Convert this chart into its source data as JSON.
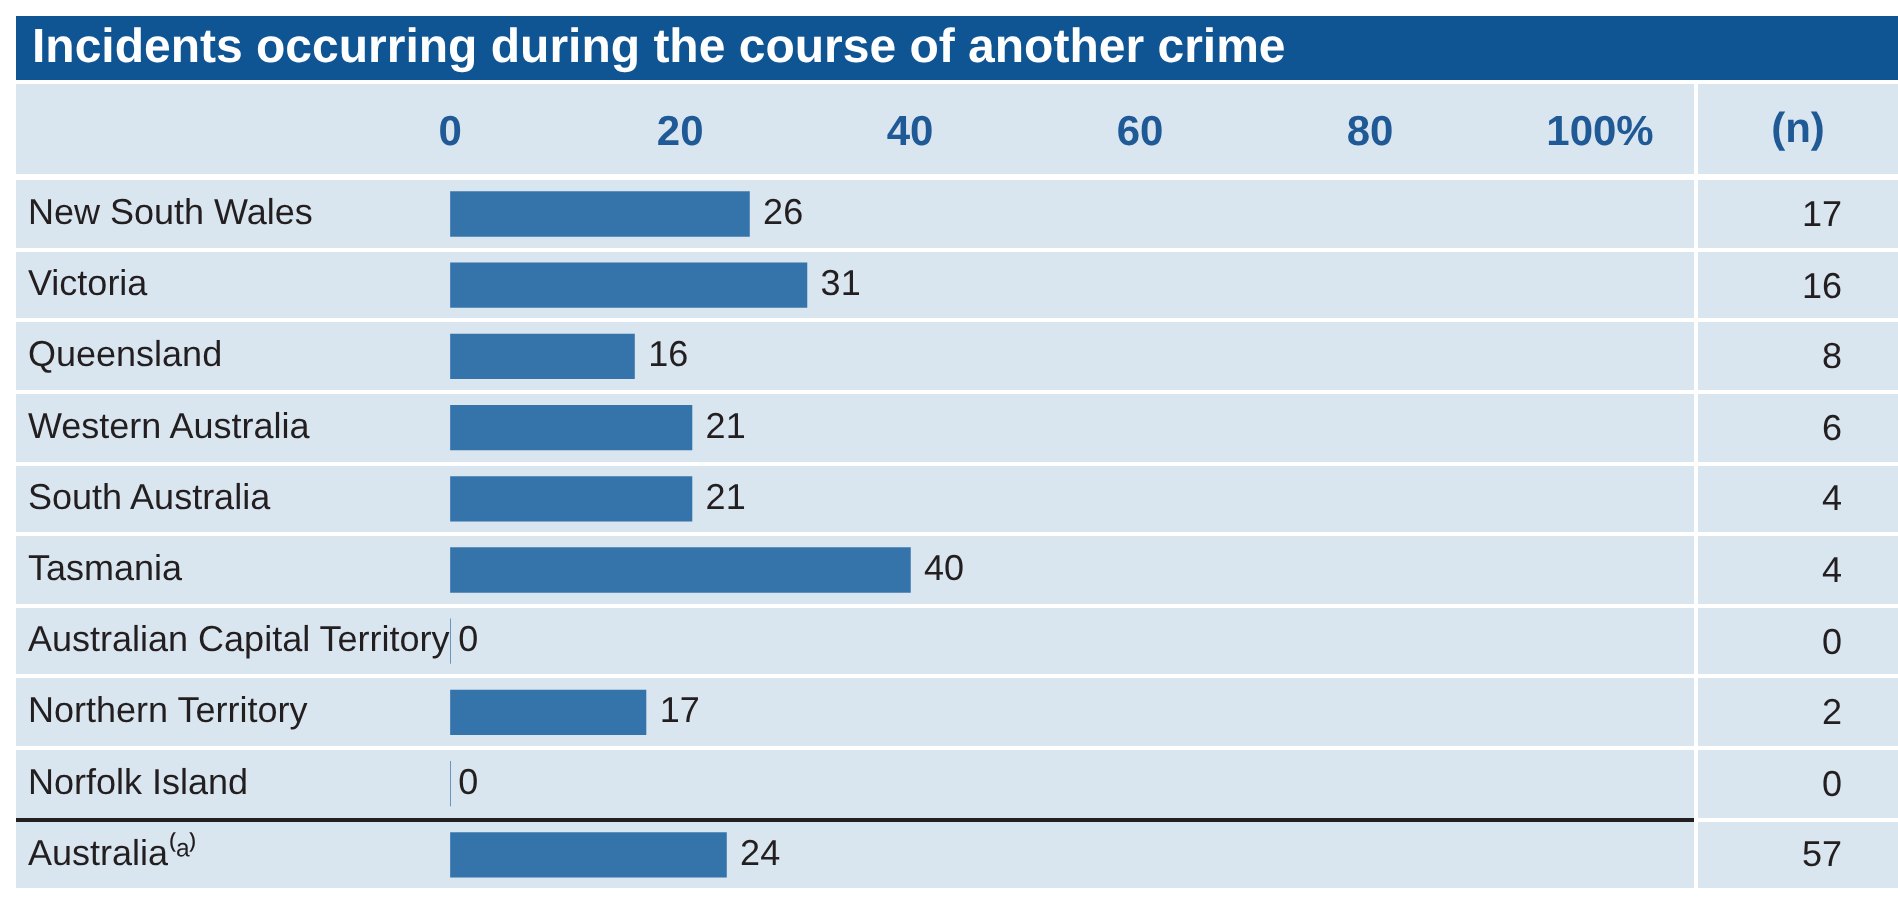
{
  "chart_data": {
    "type": "bar",
    "orientation": "horizontal",
    "title": "Incidents occurring during the course of another crime",
    "categories": [
      "New South Wales",
      "Victoria",
      "Queensland",
      "Western Australia",
      "South Australia",
      "Tasmania",
      "Australian Capital Territory",
      "Northern Territory",
      "Norfolk Island",
      "Australia⁽ᵃ⁾"
    ],
    "values": [
      26,
      31,
      16,
      21,
      21,
      40,
      0,
      17,
      0,
      24
    ],
    "color": "#3474ab",
    "xlim": [
      0,
      100
    ],
    "xticks": [
      0,
      20,
      40,
      60,
      80,
      {
        "value": 100,
        "label": "100%"
      }
    ],
    "grid": false,
    "legend": false,
    "data_labels": true,
    "annotations": [
      "(n)",
      "17",
      "16",
      "8",
      "6",
      "4",
      "4",
      "0",
      "2",
      "0",
      "57"
    ]
  }
}
